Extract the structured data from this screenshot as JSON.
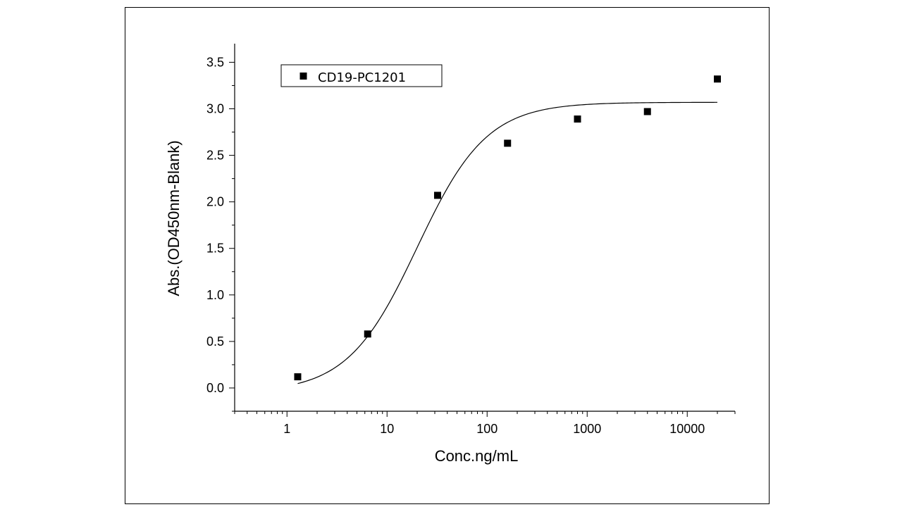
{
  "chart_data": {
    "type": "scatter",
    "title": "",
    "xlabel": "Conc.ng/mL",
    "ylabel": "Abs.(OD450nm-Blank)",
    "xscale": "log",
    "xlim": [
      0.3,
      30000
    ],
    "ylim": [
      -0.25,
      3.7
    ],
    "xticks": [
      {
        "value": 1,
        "label": "1"
      },
      {
        "value": 10,
        "label": "10"
      },
      {
        "value": 100,
        "label": "100"
      },
      {
        "value": 1000,
        "label": "1000"
      },
      {
        "value": 10000,
        "label": "10000"
      }
    ],
    "yticks": [
      {
        "value": 0.0,
        "label": "0.0"
      },
      {
        "value": 0.5,
        "label": "0.5"
      },
      {
        "value": 1.0,
        "label": "1.0"
      },
      {
        "value": 1.5,
        "label": "1.5"
      },
      {
        "value": 2.0,
        "label": "2.0"
      },
      {
        "value": 2.5,
        "label": "2.5"
      },
      {
        "value": 3.0,
        "label": "3.0"
      },
      {
        "value": 3.5,
        "label": "3.5"
      }
    ],
    "legend_position": "top-left",
    "grid": false,
    "series": [
      {
        "name": "CD19-PC1201",
        "marker": "square",
        "color": "#000000",
        "x": [
          1.28,
          6.4,
          32,
          160,
          800,
          4000,
          20000
        ],
        "y": [
          0.12,
          0.58,
          2.07,
          2.63,
          2.89,
          2.97,
          3.32
        ]
      }
    ],
    "fit_curve": {
      "type": "4PL",
      "bottom": -0.05,
      "top": 3.07,
      "ec50": 20,
      "hill": 1.25,
      "x_range": [
        1.28,
        20000
      ],
      "color": "#000000"
    }
  }
}
